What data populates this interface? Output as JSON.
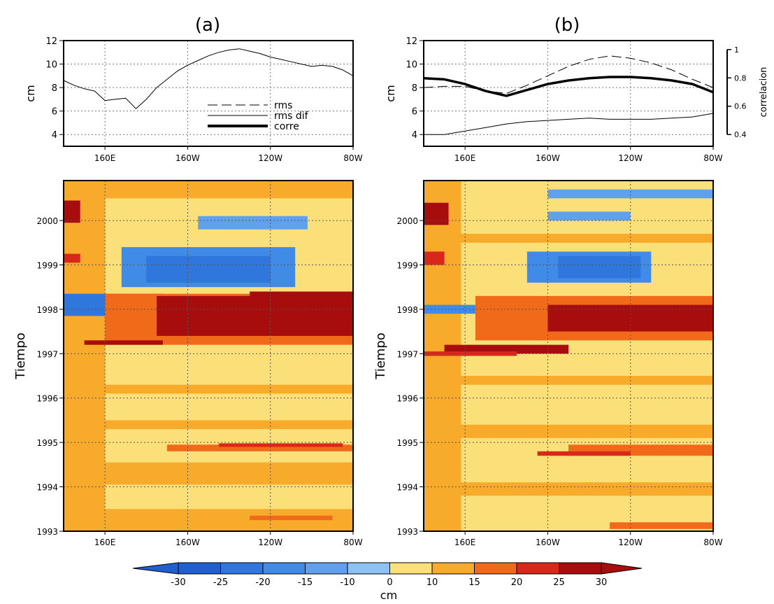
{
  "panel_labels": [
    "(a)",
    "(b)"
  ],
  "legend": {
    "rms": "rms",
    "rms_dif": "rms dif",
    "corre": "corre"
  },
  "colorbar": {
    "ticks": [
      "-30",
      "-25",
      "-20",
      "-15",
      "-10",
      "0",
      "10",
      "15",
      "20",
      "25",
      "30"
    ],
    "unit": "cm",
    "colors": [
      "#1f5fcf",
      "#2f77dc",
      "#3f8be6",
      "#5fa1ee",
      "#8cc2f4",
      "#b8e9f5",
      "#fbe07a",
      "#f8aa2a",
      "#f06a1a",
      "#d8281a",
      "#a80d0d"
    ]
  },
  "chart_data": [
    {
      "type": "line",
      "panel": "(a)",
      "ylabel": "cm",
      "ylim": [
        3,
        12
      ],
      "yticks": [
        "4",
        "6",
        "8",
        "10",
        "12"
      ],
      "xticks": [
        "160E",
        "160W",
        "120W",
        "80W"
      ],
      "xlim": [
        140,
        280
      ],
      "series": [
        {
          "name": "rms dif",
          "style": "thin",
          "x": [
            140,
            145,
            150,
            155,
            160,
            165,
            170,
            175,
            180,
            185,
            190,
            195,
            200,
            205,
            210,
            215,
            220,
            225,
            230,
            235,
            240,
            245,
            250,
            255,
            260,
            265,
            270,
            275,
            280
          ],
          "y": [
            8.6,
            8.2,
            7.9,
            7.7,
            6.9,
            7.0,
            7.1,
            6.2,
            7.0,
            8.0,
            8.7,
            9.4,
            9.9,
            10.3,
            10.7,
            11.0,
            11.2,
            11.3,
            11.1,
            10.9,
            10.6,
            10.4,
            10.2,
            10.0,
            9.8,
            9.9,
            9.8,
            9.5,
            9.0
          ]
        }
      ]
    },
    {
      "type": "line",
      "panel": "(b)",
      "ylabel": "cm",
      "ylim": [
        3,
        12
      ],
      "yticks": [
        "4",
        "6",
        "8",
        "10",
        "12"
      ],
      "y2label": "correlacion",
      "y2lim": [
        0.4,
        1
      ],
      "y2ticks": [
        "0.4",
        "0.6",
        "0.8",
        "1"
      ],
      "xticks": [
        "160E",
        "160W",
        "120W",
        "80W"
      ],
      "xlim": [
        140,
        280
      ],
      "series": [
        {
          "name": "rms",
          "style": "dashed",
          "x": [
            140,
            150,
            160,
            170,
            180,
            190,
            200,
            210,
            220,
            230,
            240,
            250,
            260,
            270,
            280
          ],
          "y": [
            8.0,
            8.1,
            8.1,
            7.7,
            7.5,
            8.2,
            9.0,
            9.8,
            10.4,
            10.7,
            10.5,
            10.1,
            9.5,
            8.7,
            8.0
          ]
        },
        {
          "name": "rms dif",
          "style": "thin",
          "x": [
            140,
            150,
            160,
            170,
            180,
            190,
            200,
            210,
            220,
            230,
            240,
            250,
            260,
            270,
            280
          ],
          "y": [
            4.0,
            4.0,
            4.3,
            4.6,
            4.9,
            5.1,
            5.2,
            5.3,
            5.4,
            5.3,
            5.3,
            5.3,
            5.4,
            5.5,
            5.8
          ]
        },
        {
          "name": "corre",
          "style": "thick",
          "x": [
            140,
            150,
            160,
            170,
            180,
            190,
            200,
            210,
            220,
            230,
            240,
            250,
            260,
            270,
            280
          ],
          "y": [
            8.8,
            8.7,
            8.3,
            7.7,
            7.3,
            7.8,
            8.3,
            8.6,
            8.8,
            8.9,
            8.9,
            8.8,
            8.6,
            8.3,
            7.6
          ]
        }
      ]
    },
    {
      "type": "heatmap",
      "panel": "(a)",
      "ylabel": "Tiempo",
      "xticks": [
        "160E",
        "160W",
        "120W",
        "80W"
      ],
      "yticks": [
        "1993",
        "1994",
        "1995",
        "1996",
        "1997",
        "1998",
        "1999",
        "2000"
      ],
      "xlim": [
        140,
        280
      ],
      "ylim": [
        1993,
        2000.9
      ],
      "zunit": "cm",
      "features": [
        {
          "xmin": 140,
          "xmax": 160,
          "ymin": 1992.9,
          "ymax": 2001,
          "value": 10
        },
        {
          "xmin": 140,
          "xmax": 148,
          "ymin": 1999.95,
          "ymax": 2000.45,
          "value": 25
        },
        {
          "xmin": 140,
          "xmax": 148,
          "ymin": 1999.05,
          "ymax": 1999.25,
          "value": 20
        },
        {
          "xmin": 140,
          "xmax": 188,
          "ymin": 1997.85,
          "ymax": 1998.35,
          "value": -25
        },
        {
          "xmin": 168,
          "xmax": 252,
          "ymin": 1998.5,
          "ymax": 1999.4,
          "value": -20
        },
        {
          "xmin": 180,
          "xmax": 240,
          "ymin": 1998.6,
          "ymax": 1999.2,
          "value": -25
        },
        {
          "xmin": 205,
          "xmax": 258,
          "ymin": 1999.8,
          "ymax": 2000.1,
          "value": -15
        },
        {
          "xmin": 160,
          "xmax": 280,
          "ymin": 1997.2,
          "ymax": 1998.35,
          "value": 15
        },
        {
          "xmin": 185,
          "xmax": 280,
          "ymin": 1997.4,
          "ymax": 1998.3,
          "value": 25
        },
        {
          "xmin": 210,
          "xmax": 280,
          "ymin": 1997.5,
          "ymax": 1998.2,
          "value": 30
        },
        {
          "xmin": 230,
          "xmax": 280,
          "ymin": 1997.9,
          "ymax": 1998.4,
          "value": 25
        },
        {
          "xmin": 150,
          "xmax": 188,
          "ymin": 1997.2,
          "ymax": 1997.3,
          "value": 25
        },
        {
          "xmin": 190,
          "xmax": 280,
          "ymin": 1994.8,
          "ymax": 1994.95,
          "value": 15
        },
        {
          "xmin": 215,
          "xmax": 275,
          "ymin": 1994.9,
          "ymax": 1994.98,
          "value": 20
        },
        {
          "xmin": 140,
          "xmax": 280,
          "ymin": 1994.05,
          "ymax": 1994.55,
          "value": 10
        },
        {
          "xmin": 140,
          "xmax": 280,
          "ymin": 1992.9,
          "ymax": 1993.5,
          "value": 10
        },
        {
          "xmin": 230,
          "xmax": 270,
          "ymin": 1993.25,
          "ymax": 1993.35,
          "value": 15
        },
        {
          "xmin": 140,
          "xmax": 280,
          "ymin": 1995.3,
          "ymax": 1995.5,
          "value": 10
        },
        {
          "xmin": 140,
          "xmax": 280,
          "ymin": 1996.1,
          "ymax": 1996.3,
          "value": 10
        },
        {
          "xmin": 140,
          "xmax": 280,
          "ymin": 2000.5,
          "ymax": 2001,
          "value": 10
        }
      ]
    },
    {
      "type": "heatmap",
      "panel": "(b)",
      "ylabel": "Tiempo",
      "xticks": [
        "160E",
        "160W",
        "120W",
        "80W"
      ],
      "yticks": [
        "1993",
        "1994",
        "1995",
        "1996",
        "1997",
        "1998",
        "1999",
        "2000"
      ],
      "xlim": [
        140,
        280
      ],
      "ylim": [
        1993,
        2000.9
      ],
      "zunit": "cm",
      "features": [
        {
          "xmin": 140,
          "xmax": 158,
          "ymin": 1992.9,
          "ymax": 2001,
          "value": 10
        },
        {
          "xmin": 140,
          "xmax": 152,
          "ymin": 1999.9,
          "ymax": 2000.4,
          "value": 25
        },
        {
          "xmin": 140,
          "xmax": 150,
          "ymin": 1999.0,
          "ymax": 1999.3,
          "value": 20
        },
        {
          "xmin": 140,
          "xmax": 175,
          "ymin": 1997.9,
          "ymax": 1998.1,
          "value": -20
        },
        {
          "xmin": 190,
          "xmax": 250,
          "ymin": 1998.6,
          "ymax": 1999.3,
          "value": -20
        },
        {
          "xmin": 205,
          "xmax": 245,
          "ymin": 1998.7,
          "ymax": 1999.2,
          "value": -25
        },
        {
          "xmin": 200,
          "xmax": 240,
          "ymin": 2000.0,
          "ymax": 2000.2,
          "value": -15
        },
        {
          "xmin": 200,
          "xmax": 280,
          "ymin": 2000.5,
          "ymax": 2000.7,
          "value": -15
        },
        {
          "xmin": 165,
          "xmax": 280,
          "ymin": 1997.3,
          "ymax": 1998.3,
          "value": 15
        },
        {
          "xmin": 200,
          "xmax": 280,
          "ymin": 1997.5,
          "ymax": 1998.1,
          "value": 25
        },
        {
          "xmin": 225,
          "xmax": 280,
          "ymin": 1997.7,
          "ymax": 1998.05,
          "value": 30
        },
        {
          "xmin": 150,
          "xmax": 210,
          "ymin": 1997.0,
          "ymax": 1997.2,
          "value": 25
        },
        {
          "xmin": 140,
          "xmax": 185,
          "ymin": 1996.95,
          "ymax": 1997.05,
          "value": 20
        },
        {
          "xmin": 210,
          "xmax": 280,
          "ymin": 1994.7,
          "ymax": 1994.95,
          "value": 15
        },
        {
          "xmin": 195,
          "xmax": 240,
          "ymin": 1994.7,
          "ymax": 1994.8,
          "value": 20
        },
        {
          "xmin": 140,
          "xmax": 280,
          "ymin": 1995.1,
          "ymax": 1995.4,
          "value": 10
        },
        {
          "xmin": 140,
          "xmax": 280,
          "ymin": 1993.8,
          "ymax": 1994.1,
          "value": 10
        },
        {
          "xmin": 230,
          "xmax": 280,
          "ymin": 1993.05,
          "ymax": 1993.2,
          "value": 15
        },
        {
          "xmin": 140,
          "xmax": 280,
          "ymin": 1996.3,
          "ymax": 1996.5,
          "value": 10
        },
        {
          "xmin": 140,
          "xmax": 280,
          "ymin": 1999.5,
          "ymax": 1999.7,
          "value": 10
        }
      ]
    }
  ]
}
